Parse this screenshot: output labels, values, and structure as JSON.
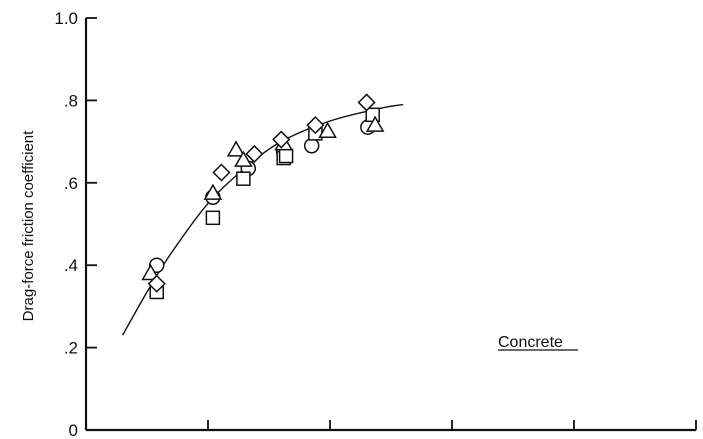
{
  "chart_data": {
    "type": "scatter",
    "title": "",
    "xlabel": "",
    "ylabel": "Drag-force friction coefficient",
    "xlim": [
      0,
      5
    ],
    "ylim": [
      0,
      1.0
    ],
    "x_ticks": [
      0,
      1,
      2,
      3,
      4,
      5
    ],
    "y_ticks": [
      0,
      0.2,
      0.4,
      0.6,
      0.8,
      1.0
    ],
    "y_tick_labels": [
      "0",
      ".2",
      ".4",
      ".6",
      ".8",
      "1.0"
    ],
    "grid": false,
    "legend": "none",
    "annotation": "Concrete",
    "marker_color": "#111111",
    "series": [
      {
        "marker": "circle",
        "points": [
          {
            "x": 0.58,
            "y": 0.4
          },
          {
            "x": 1.04,
            "y": 0.565
          },
          {
            "x": 1.33,
            "y": 0.635
          },
          {
            "x": 1.62,
            "y": 0.675
          },
          {
            "x": 1.85,
            "y": 0.69
          },
          {
            "x": 2.31,
            "y": 0.735
          }
        ]
      },
      {
        "marker": "square",
        "points": [
          {
            "x": 0.58,
            "y": 0.335
          },
          {
            "x": 1.04,
            "y": 0.515
          },
          {
            "x": 1.29,
            "y": 0.61
          },
          {
            "x": 1.62,
            "y": 0.66
          },
          {
            "x": 1.64,
            "y": 0.665
          },
          {
            "x": 1.88,
            "y": 0.72
          },
          {
            "x": 2.35,
            "y": 0.765
          }
        ]
      },
      {
        "marker": "triangle",
        "points": [
          {
            "x": 0.53,
            "y": 0.38
          },
          {
            "x": 1.04,
            "y": 0.575
          },
          {
            "x": 1.23,
            "y": 0.68
          },
          {
            "x": 1.29,
            "y": 0.655
          },
          {
            "x": 1.62,
            "y": 0.695
          },
          {
            "x": 1.98,
            "y": 0.725
          },
          {
            "x": 2.37,
            "y": 0.74
          }
        ]
      },
      {
        "marker": "diamond",
        "points": [
          {
            "x": 0.58,
            "y": 0.355
          },
          {
            "x": 1.11,
            "y": 0.625
          },
          {
            "x": 1.38,
            "y": 0.67
          },
          {
            "x": 1.6,
            "y": 0.705
          },
          {
            "x": 1.88,
            "y": 0.74
          },
          {
            "x": 2.3,
            "y": 0.795
          }
        ]
      }
    ],
    "fit_curve": {
      "x": [
        0.3,
        0.5,
        0.7,
        1.0,
        1.3,
        1.6,
        2.0,
        2.4,
        2.6
      ],
      "y": [
        0.23,
        0.335,
        0.43,
        0.55,
        0.635,
        0.7,
        0.75,
        0.78,
        0.79
      ]
    }
  }
}
